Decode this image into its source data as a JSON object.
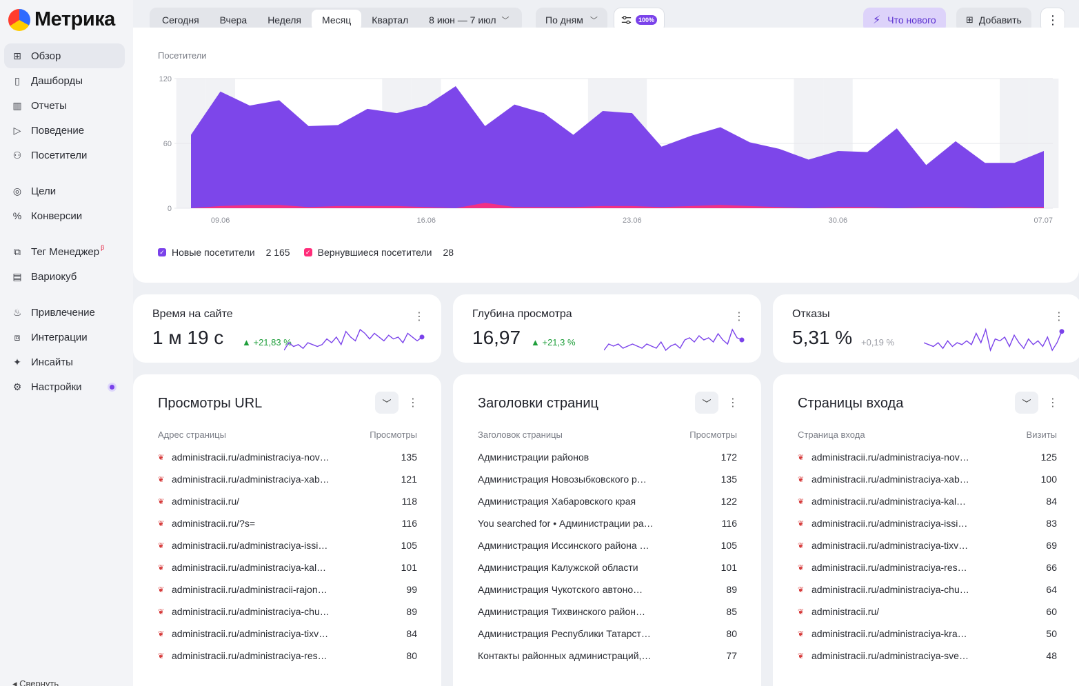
{
  "sidebar": {
    "logo_text": "Метрика",
    "items": [
      {
        "label": "Обзор",
        "icon": "grid-icon"
      },
      {
        "label": "Дашборды",
        "icon": "dashboards-icon"
      },
      {
        "label": "Отчеты",
        "icon": "bar-chart-icon"
      },
      {
        "label": "Поведение",
        "icon": "play-icon"
      },
      {
        "label": "Посетители",
        "icon": "person-icon"
      },
      {
        "label": "Цели",
        "icon": "target-icon"
      },
      {
        "label": "Конверсии",
        "icon": "percent-icon"
      },
      {
        "label": "Тег Менеджер",
        "icon": "tag-icon",
        "badge": "β"
      },
      {
        "label": "Вариокуб",
        "icon": "cube-icon"
      },
      {
        "label": "Привлечение",
        "icon": "flame-icon"
      },
      {
        "label": "Интеграции",
        "icon": "integrations-icon"
      },
      {
        "label": "Инсайты",
        "icon": "sparkle-icon"
      },
      {
        "label": "Настройки",
        "icon": "gear-icon"
      }
    ],
    "collapse_label": "Свернуть"
  },
  "topbar": {
    "periods": [
      "Сегодня",
      "Вчера",
      "Неделя",
      "Месяц",
      "Квартал"
    ],
    "active_period": "Месяц",
    "date_range": "8 июн — 7 июл",
    "grouping": "По дням",
    "filter_badge": "100%",
    "whats_new": "Что нового",
    "add": "Добавить"
  },
  "chart": {
    "subtitle": "Посетители",
    "legend": [
      {
        "name": "Новые посетители",
        "total": "2 165",
        "color": "#7a42ea"
      },
      {
        "name": "Вернувшиеся посетители",
        "total": "28",
        "color": "#ff2d7a"
      }
    ]
  },
  "chart_data": {
    "type": "area",
    "ylabel": "Посетители",
    "ylim": [
      0,
      120
    ],
    "yticks": [
      0,
      60,
      120
    ],
    "x": [
      "08.06",
      "09.06",
      "10.06",
      "11.06",
      "12.06",
      "13.06",
      "14.06",
      "15.06",
      "16.06",
      "17.06",
      "18.06",
      "19.06",
      "20.06",
      "21.06",
      "22.06",
      "23.06",
      "24.06",
      "25.06",
      "26.06",
      "27.06",
      "28.06",
      "29.06",
      "30.06",
      "01.07",
      "02.07",
      "03.07",
      "04.07",
      "05.07",
      "06.07",
      "07.07"
    ],
    "xtick_labels": [
      "09.06",
      "16.06",
      "23.06",
      "30.06",
      "07.07"
    ],
    "series": [
      {
        "name": "Новые посетители",
        "values": [
          68,
          108,
          95,
          100,
          76,
          77,
          92,
          88,
          95,
          113,
          76,
          96,
          88,
          68,
          90,
          88,
          57,
          67,
          75,
          61,
          55,
          45,
          53,
          52,
          74,
          40,
          62,
          42,
          42,
          53
        ]
      },
      {
        "name": "Вернувшиеся посетители",
        "values": [
          0,
          2,
          3,
          3,
          1,
          2,
          2,
          2,
          1,
          0,
          5,
          1,
          1,
          1,
          2,
          2,
          1,
          2,
          3,
          2,
          1,
          0,
          1,
          1,
          0,
          1,
          1,
          0,
          1,
          1
        ]
      }
    ]
  },
  "metrics": [
    {
      "title": "Время на сайте",
      "value": "1 м 19 с",
      "delta": "▲ +21,83 %",
      "trend": "up",
      "spark": [
        5,
        9,
        7,
        8,
        6,
        9,
        8,
        7,
        8,
        11,
        9,
        12,
        8,
        15,
        12,
        10,
        16,
        14,
        11,
        14,
        12,
        10,
        13,
        11,
        12,
        9,
        14,
        12,
        10,
        12
      ]
    },
    {
      "title": "Глубина просмотра",
      "value": "16,97",
      "delta": "▲ +21,3 %",
      "trend": "up",
      "spark": [
        6,
        9,
        8,
        9,
        7,
        8,
        9,
        8,
        7,
        9,
        8,
        7,
        10,
        6,
        8,
        9,
        7,
        11,
        12,
        10,
        13,
        11,
        12,
        10,
        14,
        11,
        9,
        16,
        12,
        11
      ]
    },
    {
      "title": "Отказы",
      "value": "5,31 %",
      "delta": "+0,19 %",
      "trend": "flat",
      "spark": [
        9,
        8,
        7,
        9,
        6,
        10,
        7,
        9,
        8,
        10,
        8,
        14,
        9,
        16,
        5,
        11,
        10,
        12,
        7,
        13,
        9,
        6,
        11,
        8,
        10,
        7,
        12,
        5,
        9,
        15
      ]
    }
  ],
  "tables": [
    {
      "title": "Просмотры URL",
      "col_left": "Адрес страницы",
      "col_right": "Просмотры",
      "favicon": true,
      "rows": [
        [
          "administracii.ru/administraciya-nov…",
          "135"
        ],
        [
          "administracii.ru/administraciya-xab…",
          "121"
        ],
        [
          "administracii.ru/",
          "118"
        ],
        [
          "administracii.ru/?s=",
          "116"
        ],
        [
          "administracii.ru/administraciya-issi…",
          "105"
        ],
        [
          "administracii.ru/administraciya-kal…",
          "101"
        ],
        [
          "administracii.ru/administracii-rajon…",
          "99"
        ],
        [
          "administracii.ru/administraciya-chu…",
          "89"
        ],
        [
          "administracii.ru/administraciya-tixv…",
          "84"
        ],
        [
          "administracii.ru/administraciya-res…",
          "80"
        ]
      ]
    },
    {
      "title": "Заголовки страниц",
      "col_left": "Заголовок страницы",
      "col_right": "Просмотры",
      "favicon": false,
      "rows": [
        [
          "Администрации районов",
          "172"
        ],
        [
          "Администрация Новозыбковского р…",
          "135"
        ],
        [
          "Администрация Хабаровского края",
          "122"
        ],
        [
          "You searched for • Администрации ра…",
          "116"
        ],
        [
          "Администрация Иссинского района …",
          "105"
        ],
        [
          "Администрация Калужской области",
          "101"
        ],
        [
          "Администрация Чукотского автоно…",
          "89"
        ],
        [
          "Администрация Тихвинского район…",
          "85"
        ],
        [
          "Администрация Республики Татарст…",
          "80"
        ],
        [
          "Контакты районных администраций,…",
          "77"
        ]
      ]
    },
    {
      "title": "Страницы входа",
      "col_left": "Страница входа",
      "col_right": "Визиты",
      "favicon": true,
      "rows": [
        [
          "administracii.ru/administraciya-nov…",
          "125"
        ],
        [
          "administracii.ru/administraciya-xab…",
          "100"
        ],
        [
          "administracii.ru/administraciya-kal…",
          "84"
        ],
        [
          "administracii.ru/administraciya-issi…",
          "83"
        ],
        [
          "administracii.ru/administraciya-tixv…",
          "69"
        ],
        [
          "administracii.ru/administraciya-res…",
          "66"
        ],
        [
          "administracii.ru/administraciya-chu…",
          "64"
        ],
        [
          "administracii.ru/",
          "60"
        ],
        [
          "administracii.ru/administraciya-kra…",
          "50"
        ],
        [
          "administracii.ru/administraciya-sve…",
          "48"
        ]
      ]
    }
  ]
}
